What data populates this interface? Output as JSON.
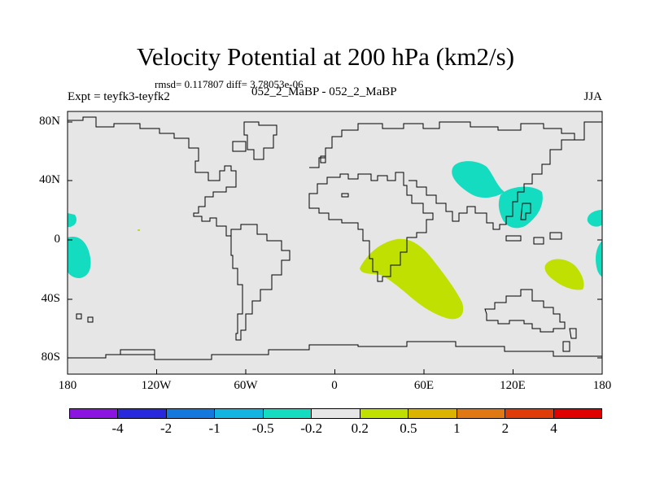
{
  "title": "Velocity Potential at 200 hPa (km2/s)",
  "stats": "rmsd= 0.117807 diff= 3.78053e-06",
  "expt": "Expt = teyfk3-teyfk2",
  "period": "052_2_MaBP - 052_2_MaBP",
  "season": "JJA",
  "lon_ticks": [
    "180",
    "120W",
    "60W",
    "0",
    "60E",
    "120E",
    "180"
  ],
  "lat_ticks": [
    "80N",
    "40N",
    "0",
    "40S",
    "80S"
  ],
  "colors": {
    "land_ocean_fill": "#e6e6e6",
    "coast": "#000000",
    "pos_anomaly": "#bfe000",
    "neg_anomaly": "#14dcc0"
  },
  "colorbar": {
    "colors": [
      "#8c14e0",
      "#2828dc",
      "#1478dc",
      "#14b4e0",
      "#14dcc0",
      "#e6e6e6",
      "#bfe000",
      "#dcb400",
      "#e07814",
      "#e03c0a",
      "#e00000"
    ],
    "labels": [
      "-4",
      "-2",
      "-1",
      "-0.5",
      "-0.2",
      "0.2",
      "0.5",
      "1",
      "2",
      "4"
    ]
  }
}
